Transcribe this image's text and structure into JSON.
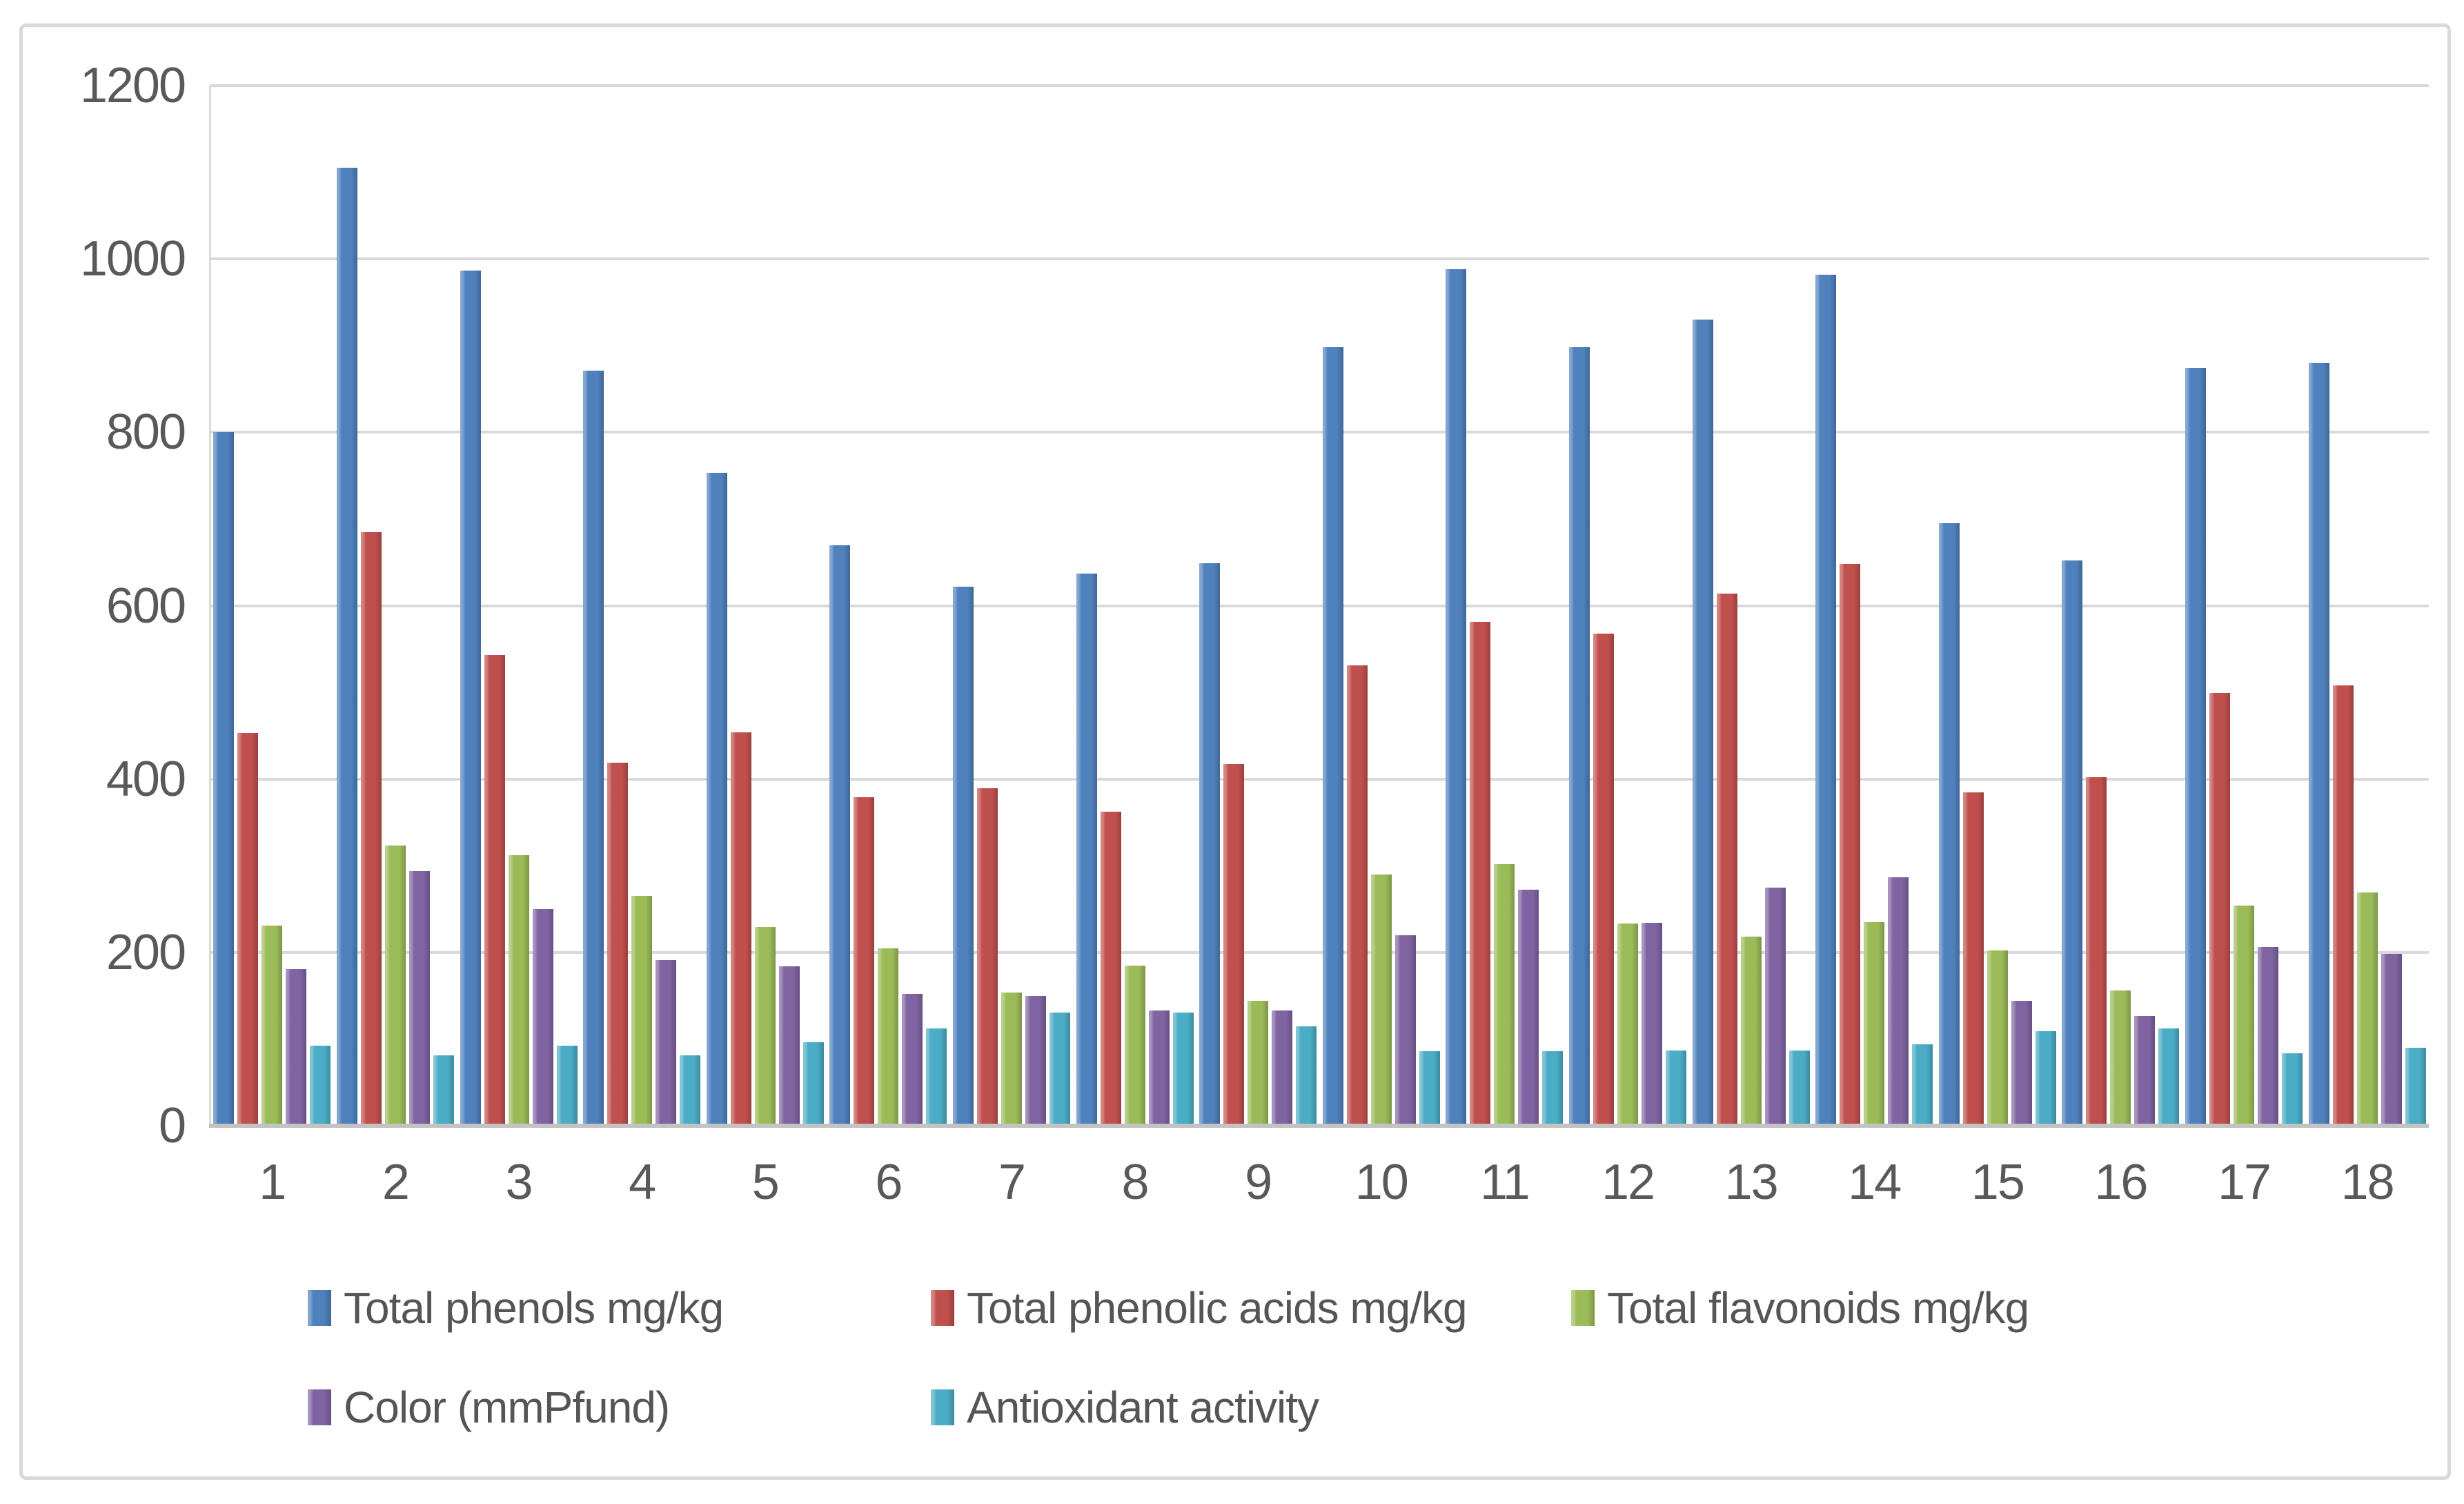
{
  "chart_data": {
    "type": "bar",
    "title": "",
    "xlabel": "",
    "ylabel": "",
    "categories": [
      "1",
      "2",
      "3",
      "4",
      "5",
      "6",
      "7",
      "8",
      "9",
      "10",
      "11",
      "12",
      "13",
      "14",
      "15",
      "16",
      "17",
      "18"
    ],
    "series": [
      {
        "name": "Total phenols mg/kg",
        "color": "#4F81BD",
        "values": [
          800,
          1105,
          987,
          871,
          753,
          670,
          622,
          637,
          649,
          898,
          988,
          898,
          930,
          982,
          695,
          652,
          874,
          880
        ]
      },
      {
        "name": "Total phenolic acids mg/kg",
        "color": "#C0504D",
        "values": [
          453,
          685,
          543,
          419,
          454,
          379,
          389,
          362,
          417,
          531,
          581,
          568,
          614,
          648,
          385,
          402,
          499,
          508
        ]
      },
      {
        "name": "Total flavonoids mg/kg",
        "color": "#9BBB59",
        "values": [
          231,
          323,
          312,
          265,
          229,
          205,
          154,
          185,
          144,
          290,
          302,
          233,
          218,
          235,
          202,
          156,
          254,
          269
        ]
      },
      {
        "name": "Color (mmPfund)",
        "color": "#8064A2",
        "values": [
          181,
          294,
          250,
          191,
          184,
          152,
          150,
          133,
          133,
          220,
          272,
          234,
          275,
          287,
          144,
          127,
          206,
          198
        ]
      },
      {
        "name": "Antioxidant activity",
        "color": "#4BACC6",
        "values": [
          92,
          81,
          92,
          81,
          96,
          112,
          131,
          131,
          115,
          86,
          86,
          87,
          87,
          94,
          109,
          112,
          84,
          90
        ]
      }
    ],
    "ylim": [
      0,
      1200
    ],
    "yticks": [
      0,
      200,
      400,
      600,
      800,
      1000,
      1200
    ],
    "grid": "horizontal",
    "gridline_color": "#d9d9d9",
    "axis_text_color": "#595959",
    "legend_position": "bottom",
    "legend_rows": 2
  }
}
